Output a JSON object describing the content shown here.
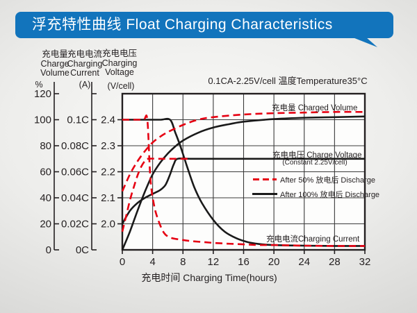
{
  "title": "浮充特性曲线 Float Charging Characteristics",
  "colors": {
    "banner": "#1274bc",
    "red": "#e60012",
    "black": "#1a1a1a",
    "grid": "#3a3a3a",
    "text": "#231f20"
  },
  "chart_data": {
    "type": "line",
    "title": "浮充特性曲线 Float Charging Characteristics",
    "condition": "0.1CA-2.25V/cell  温度Temperature35°C",
    "grid": true,
    "x_axis": {
      "title": "充电时间 Charging Time(hours)",
      "ticks": [
        "0",
        "4",
        "8",
        "12",
        "16",
        "20",
        "24",
        "28",
        "32"
      ],
      "min": 0,
      "max": 32
    },
    "y_axes": {
      "percent": {
        "header_cn": "充电量",
        "header_en1": "Charge",
        "header_en2": "Volume",
        "unit": "%",
        "ticks": [
          "120",
          "100",
          "80",
          "60",
          "40",
          "20",
          "0"
        ],
        "min": 0,
        "max": 120
      },
      "current": {
        "header_cn": "充电电流",
        "header_en1": "Charging",
        "header_en2": "Current",
        "unit": "(A)",
        "ticks": [
          "0.1C",
          "0.08C",
          "0.06C",
          "0.04C",
          "0.02C",
          "0C"
        ]
      },
      "voltage": {
        "header_cn": "充电电压",
        "header_en1": "Charging",
        "header_en2": "Voltage",
        "unit": "(V/cell)",
        "ticks": [
          "2.4",
          "2.3",
          "2.2",
          "2.1",
          "2.0"
        ],
        "min": 2.0,
        "max": 2.4
      }
    },
    "plot_labels": {
      "charged_volume": "充电量 Charged Volume",
      "charge_voltage": "充电电压 Charge Voltage",
      "charge_voltage_sub": "(Constant 2.25V/cell)",
      "charging_current": "充电电流Charging Current"
    },
    "legend": [
      {
        "label": "After 50% 放电后 Discharge",
        "line": "dashed",
        "color": "#e60012"
      },
      {
        "label": "After 100% 放电后 Discharge",
        "line": "solid",
        "color": "#1a1a1a"
      }
    ],
    "series": [
      {
        "name": "charged-volume-after-100-discharge",
        "axis": "percent",
        "color": "#1a1a1a",
        "dashed": false,
        "points": [
          [
            0,
            0
          ],
          [
            1,
            14
          ],
          [
            2,
            30
          ],
          [
            3,
            45
          ],
          [
            4,
            58
          ],
          [
            5,
            67
          ],
          [
            6,
            74
          ],
          [
            7,
            79.5
          ],
          [
            8,
            84
          ],
          [
            10,
            90
          ],
          [
            12,
            94
          ],
          [
            14,
            96.5
          ],
          [
            16,
            98.5
          ],
          [
            20,
            100.5
          ],
          [
            24,
            101.5
          ],
          [
            28,
            102
          ],
          [
            32,
            102.5
          ]
        ]
      },
      {
        "name": "charge-voltage-after-100-discharge",
        "axis": "voltage",
        "color": "#1a1a1a",
        "dashed": false,
        "points": [
          [
            0,
            2.0
          ],
          [
            1,
            2.05
          ],
          [
            2,
            2.08
          ],
          [
            3,
            2.1
          ],
          [
            4,
            2.115
          ],
          [
            5,
            2.13
          ],
          [
            5.7,
            2.15
          ],
          [
            6.3,
            2.19
          ],
          [
            6.8,
            2.23
          ],
          [
            7.3,
            2.25
          ],
          [
            9,
            2.25
          ],
          [
            14,
            2.25
          ],
          [
            20,
            2.25
          ],
          [
            26,
            2.25
          ],
          [
            32,
            2.25
          ]
        ]
      },
      {
        "name": "charging-current-after-100-discharge",
        "axis": "current",
        "color": "#1a1a1a",
        "dashed": false,
        "points": [
          [
            0,
            0.1
          ],
          [
            3,
            0.1
          ],
          [
            5,
            0.1
          ],
          [
            6.3,
            0.1
          ],
          [
            7,
            0.09
          ],
          [
            7.7,
            0.079
          ],
          [
            8.6,
            0.063
          ],
          [
            9.5,
            0.048
          ],
          [
            10.5,
            0.036
          ],
          [
            12,
            0.023
          ],
          [
            13.5,
            0.014
          ],
          [
            15,
            0.009
          ],
          [
            16.5,
            0.006
          ],
          [
            18,
            0.0045
          ],
          [
            20,
            0.0037
          ],
          [
            24,
            0.0032
          ],
          [
            28,
            0.003
          ],
          [
            32,
            0.003
          ]
        ]
      },
      {
        "name": "charged-volume-after-50-discharge",
        "axis": "percent",
        "color": "#e60012",
        "dashed": true,
        "points": [
          [
            0,
            45
          ],
          [
            1,
            58
          ],
          [
            2,
            68
          ],
          [
            3,
            76
          ],
          [
            4,
            82.5
          ],
          [
            5,
            87
          ],
          [
            6,
            90.5
          ],
          [
            8,
            96
          ],
          [
            10,
            100
          ],
          [
            12,
            102
          ],
          [
            16,
            104
          ],
          [
            20,
            105
          ],
          [
            24,
            105.5
          ],
          [
            28,
            106
          ],
          [
            32,
            106
          ]
        ]
      },
      {
        "name": "charge-voltage-after-50-discharge",
        "axis": "voltage",
        "color": "#e60012",
        "dashed": true,
        "points": [
          [
            0,
            1.97
          ],
          [
            0.5,
            2.03
          ],
          [
            1,
            2.09
          ],
          [
            1.5,
            2.14
          ],
          [
            2,
            2.185
          ],
          [
            2.5,
            2.22
          ],
          [
            3,
            2.242
          ],
          [
            3.4,
            2.25
          ],
          [
            5,
            2.25
          ],
          [
            6.8,
            2.25
          ],
          [
            8.6,
            2.25
          ]
        ]
      },
      {
        "name": "charging-current-after-50-discharge",
        "axis": "current",
        "color": "#e60012",
        "dashed": true,
        "points": [
          [
            0,
            0.1
          ],
          [
            1.5,
            0.1
          ],
          [
            2.8,
            0.1
          ],
          [
            3.3,
            0.1
          ],
          [
            3.7,
            0.055
          ],
          [
            4.2,
            0.034
          ],
          [
            4.8,
            0.022
          ],
          [
            5.5,
            0.013
          ],
          [
            6.3,
            0.0095
          ],
          [
            7.5,
            0.008
          ],
          [
            9,
            0.0068
          ],
          [
            11,
            0.0058
          ],
          [
            13,
            0.005
          ],
          [
            16,
            0.0042
          ],
          [
            18,
            0.0037
          ],
          [
            20,
            0.0037
          ],
          [
            24,
            0.0032
          ],
          [
            28,
            0.003
          ],
          [
            32,
            0.003
          ]
        ]
      }
    ]
  }
}
